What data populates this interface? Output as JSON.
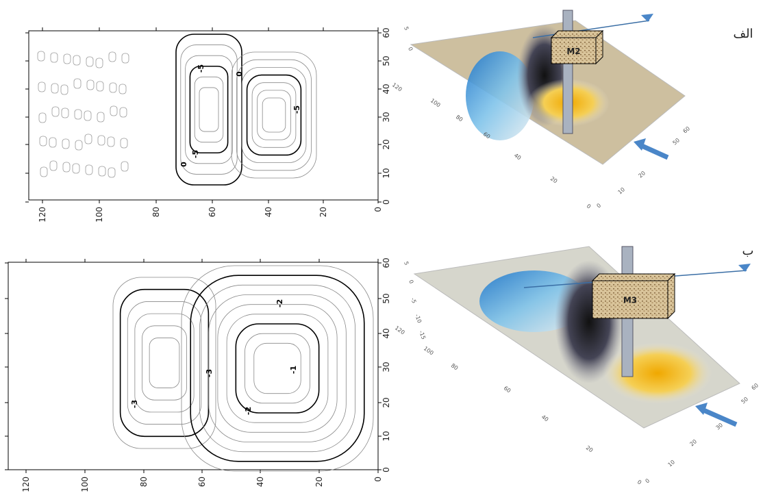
{
  "panels": [
    {
      "label": "الف",
      "contour": {
        "xticks": [
          "120",
          "100",
          "80",
          "60",
          "40",
          "20",
          "0"
        ],
        "yticks": [
          "0",
          "10",
          "20",
          "30",
          "40",
          "50",
          "60"
        ],
        "contour_labels": [
          "0",
          "-5",
          "-5",
          "-5",
          "0"
        ]
      },
      "surface": {
        "box_label": "M2",
        "left_ticks": [
          "120",
          "100",
          "80",
          "60",
          "40",
          "20",
          "0"
        ],
        "right_ticks": [
          "0",
          "10",
          "20",
          "50",
          "60"
        ],
        "z_ticks": [
          "5",
          "0"
        ]
      }
    },
    {
      "label": "ب",
      "contour": {
        "xticks": [
          "120",
          "100",
          "80",
          "60",
          "40",
          "20",
          "0"
        ],
        "yticks": [
          "0",
          "10",
          "20",
          "30",
          "40",
          "50",
          "60"
        ],
        "contour_labels": [
          "-2",
          "-3",
          "-3",
          "-2",
          "-1"
        ]
      },
      "surface": {
        "box_label": "M3",
        "left_ticks": [
          "120",
          "100",
          "80",
          "60",
          "40",
          "20",
          "0"
        ],
        "right_ticks": [
          "0",
          "10",
          "20",
          "30",
          "50",
          "60"
        ],
        "z_ticks": [
          "5",
          "0",
          "-5",
          "-10",
          "-15"
        ]
      }
    }
  ]
}
